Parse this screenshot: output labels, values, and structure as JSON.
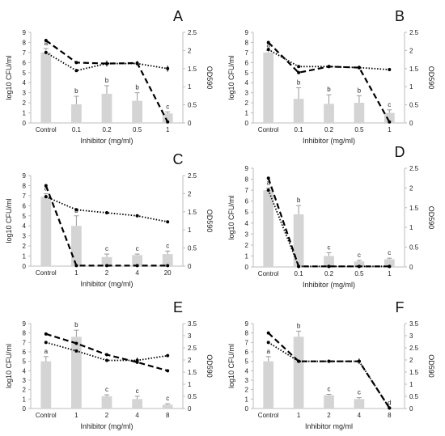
{
  "chart_data": [
    {
      "panel": "A",
      "type": "bar",
      "categories": [
        "Control",
        "0.1",
        "0.2",
        "0.5",
        "1"
      ],
      "xlabel": "Inhibitor (mg/ml)",
      "ylabel": "log10 CFU/ml",
      "y2label": "OD590",
      "ylim": [
        0,
        9
      ],
      "y2lim": [
        0,
        2.5
      ],
      "yticks": [
        "0",
        "1",
        "2",
        "3",
        "4",
        "5",
        "6",
        "7",
        "8",
        "9"
      ],
      "y2ticks": [
        "0",
        "0.5",
        "1",
        "1.5",
        "2",
        "2.5"
      ],
      "bars": [
        7.0,
        1.85,
        2.9,
        2.2,
        0.95
      ],
      "bar_err": [
        0.4,
        0.8,
        0.8,
        0.8,
        0.15
      ],
      "bar_letters": [
        "a",
        "b",
        "b",
        "b",
        "c"
      ],
      "dashed": [
        8.2,
        6.0,
        5.9,
        5.95,
        0.1
      ],
      "dashed_err": [
        0,
        0,
        0.3,
        0.2,
        0
      ],
      "dotted": [
        7.0,
        5.2,
        5.9,
        5.9,
        5.4
      ],
      "dotted_err": [
        0,
        0,
        0,
        0,
        0.3
      ]
    },
    {
      "panel": "B",
      "type": "bar",
      "categories": [
        "Control",
        "0.1",
        "0.2",
        "0.5",
        "1"
      ],
      "xlabel": "Inhibitor (mg/ml)",
      "ylabel": "log10 CFU/ml",
      "y2label": "OD590",
      "ylim": [
        0,
        9
      ],
      "y2lim": [
        0,
        2.5
      ],
      "yticks": [
        "0",
        "1",
        "2",
        "3",
        "4",
        "5",
        "6",
        "7",
        "8",
        "9"
      ],
      "y2ticks": [
        "0",
        "0.5",
        "1",
        "1.5",
        "2",
        "2.5"
      ],
      "bars": [
        7.0,
        2.4,
        1.9,
        2.0,
        1.0
      ],
      "bar_err": [
        0.2,
        1.1,
        0.9,
        0.7,
        0.3
      ],
      "bar_letters": [
        "a",
        "b",
        "b",
        "b",
        "c"
      ],
      "dashed": [
        8.0,
        5.0,
        5.6,
        5.5,
        0.1
      ],
      "dashed_err": [
        0,
        0,
        0,
        0.2,
        0
      ],
      "dotted": [
        7.3,
        5.6,
        5.6,
        5.5,
        5.3
      ],
      "dotted_err": [
        0,
        0,
        0,
        0,
        0
      ]
    },
    {
      "panel": "C",
      "type": "bar",
      "categories": [
        "Control",
        "1",
        "2",
        "4",
        "20"
      ],
      "xlabel": "Inhibitor (mg/ml)",
      "ylabel": "log10 CFU/ml",
      "y2label": "OD590",
      "ylim": [
        0,
        9
      ],
      "y2lim": [
        0,
        2.5
      ],
      "yticks": [
        "0",
        "1",
        "2",
        "3",
        "4",
        "5",
        "6",
        "7",
        "8",
        "9"
      ],
      "y2ticks": [
        "0",
        "0.5",
        "1",
        "1.5",
        "2",
        "2.5"
      ],
      "bars": [
        6.9,
        4.0,
        0.9,
        1.1,
        1.2
      ],
      "bar_err": [
        0.3,
        1.0,
        0.3,
        0.1,
        0.3
      ],
      "bar_letters": [
        "a",
        "b",
        "c",
        "c",
        "c"
      ],
      "dashed": [
        8.0,
        0.05,
        0.05,
        0.05,
        0.05
      ],
      "dashed_err": [
        0,
        0,
        0,
        0,
        0
      ],
      "dotted": [
        6.9,
        5.6,
        5.3,
        5.0,
        4.4
      ],
      "dotted_err": [
        0,
        0,
        0,
        0,
        0
      ]
    },
    {
      "panel": "D",
      "type": "bar",
      "categories": [
        "Control",
        "0.1",
        "0.2",
        "0.5",
        "1"
      ],
      "xlabel": "Inhibitor (mg/ml)",
      "ylabel": "log10 CFU/ml",
      "y2label": "OD590",
      "ylim": [
        0,
        9
      ],
      "y2lim": [
        0,
        2.5
      ],
      "yticks": [
        "0",
        "1",
        "2",
        "3",
        "4",
        "5",
        "6",
        "7",
        "8",
        "9"
      ],
      "y2ticks": [
        "0",
        "0.5",
        "1",
        "1.5",
        "2",
        "2.5"
      ],
      "bars": [
        7.0,
        4.8,
        1.0,
        0.5,
        0.7
      ],
      "bar_err": [
        0.2,
        0.8,
        0.3,
        0.1,
        0.1
      ],
      "bar_letters": [
        "a",
        "b",
        "c",
        "c",
        "c"
      ],
      "dashed": [
        8.1,
        0.05,
        0.05,
        0.05,
        0.05
      ],
      "dashed_err": [
        0,
        0,
        0,
        0,
        0
      ],
      "dotted": [
        7.0,
        0.05,
        0.05,
        0.05,
        0.05
      ],
      "dotted_err": [
        0,
        0,
        0,
        0,
        0
      ]
    },
    {
      "panel": "E",
      "type": "bar",
      "categories": [
        "Control",
        "1",
        "2",
        "4",
        "8"
      ],
      "xlabel": "Inhibitor (mg/ml)",
      "ylabel": "log10 CFU/ml",
      "y2label": "OD590",
      "ylim": [
        0,
        9
      ],
      "y2lim": [
        0,
        3.5
      ],
      "yticks": [
        "0",
        "1",
        "2",
        "3",
        "4",
        "5",
        "6",
        "7",
        "8",
        "9"
      ],
      "y2ticks": [
        "0",
        "0.5",
        "1",
        "1.5",
        "2",
        "2.5",
        "3",
        "3.5"
      ],
      "bars": [
        5.0,
        7.6,
        1.3,
        1.0,
        0.4
      ],
      "bar_err": [
        0.5,
        0.7,
        0.15,
        0.3,
        0.1
      ],
      "bar_letters": [
        "a",
        "b",
        "c",
        "c",
        "c"
      ],
      "dashed": [
        7.9,
        6.9,
        5.7,
        4.9,
        4.0
      ],
      "dashed_err": [
        0,
        0,
        0,
        0,
        0
      ],
      "dotted": [
        7.0,
        6.1,
        5.1,
        5.1,
        5.6
      ],
      "dotted_err": [
        0,
        0,
        0,
        0.3,
        0
      ]
    },
    {
      "panel": "F",
      "type": "bar",
      "categories": [
        "Control",
        "1",
        "2",
        "4",
        "8"
      ],
      "xlabel": "Inhibitor mg/ml",
      "ylabel": "log10 CFU/ml",
      "y2label": "OD590",
      "ylim": [
        0,
        9
      ],
      "y2lim": [
        0,
        3.5
      ],
      "yticks": [
        "0",
        "1",
        "2",
        "3",
        "4",
        "5",
        "6",
        "7",
        "8",
        "9"
      ],
      "y2ticks": [
        "0",
        "0.5",
        "1",
        "1.5",
        "2",
        "2.5",
        "3",
        "3.5"
      ],
      "bars": [
        5.0,
        7.6,
        1.4,
        1.0,
        0.05
      ],
      "bar_err": [
        0.5,
        0.6,
        0.1,
        0.15,
        0
      ],
      "bar_letters": [
        "a",
        "b",
        "c",
        "c",
        "d"
      ],
      "dashed": [
        8.0,
        5.0,
        5.0,
        5.0,
        0.05
      ],
      "dashed_err": [
        0,
        0,
        0,
        0.3,
        0
      ],
      "dotted": [
        7.0,
        5.0,
        5.0,
        5.0,
        0.05
      ],
      "dotted_err": [
        0,
        0,
        0,
        0,
        0
      ]
    }
  ],
  "colors": {
    "bar": "#d4d4d4",
    "bar_err": "#9a9a9a",
    "line": "#000000",
    "axis": "#bdbdbd",
    "text": "#222222"
  }
}
